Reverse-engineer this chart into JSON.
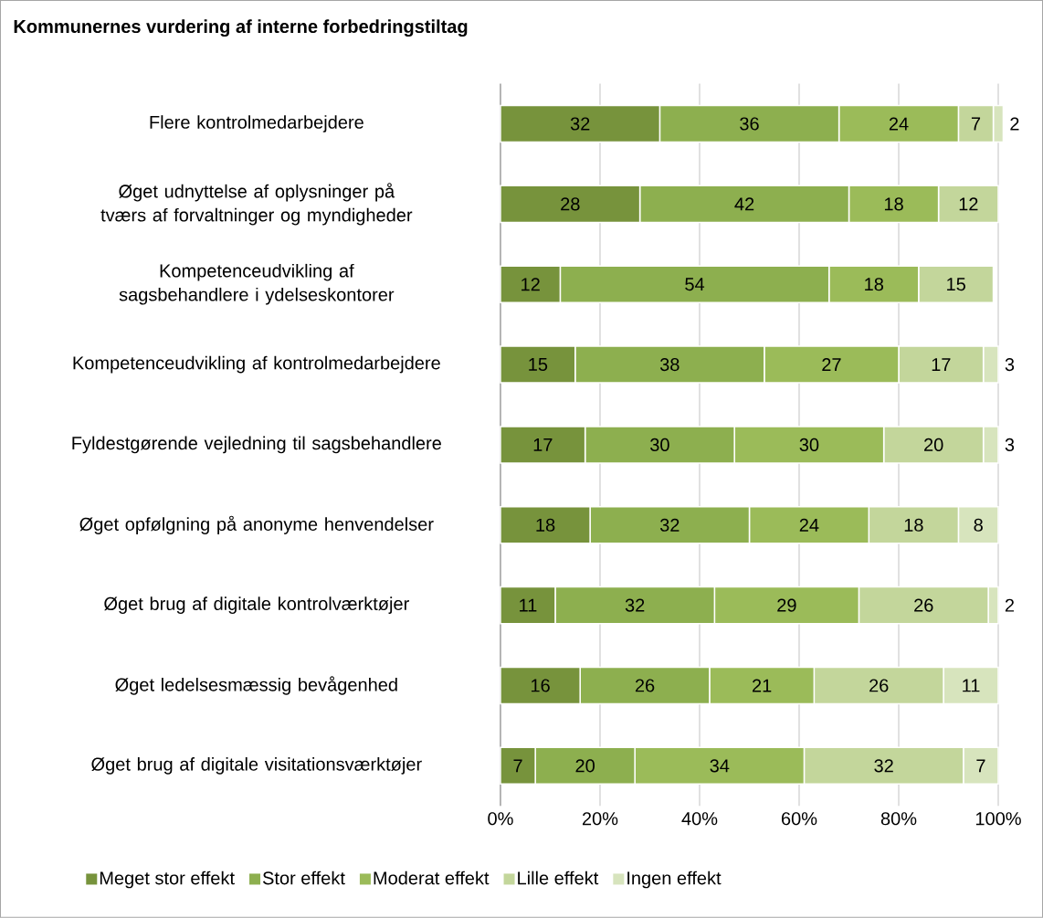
{
  "chart_data": {
    "type": "bar",
    "orientation": "horizontal",
    "stacked": true,
    "title": "Kommunernes vurdering af interne forbedringstiltag",
    "categories": [
      "Flere kontrolmedarbejdere",
      "Øget udnyttelse af oplysninger på tværs af forvaltninger og myndigheder",
      "Kompetenceudvikling af sagsbehandlere i ydelseskontorer",
      "Kompetenceudvikling af kontrolmedarbejdere",
      "Fyldestgørende vejledning til sagsbehandlere",
      "Øget opfølgning på anonyme henvendelser",
      "Øget brug af digitale kontrolværktøjer",
      "Øget ledelsesmæssig bevågenhed",
      "Øget brug af digitale visitationsværktøjer"
    ],
    "series": [
      {
        "name": "Meget stor effekt",
        "color": "#77933c",
        "values": [
          32,
          28,
          12,
          15,
          17,
          18,
          11,
          16,
          7
        ]
      },
      {
        "name": "Stor effekt",
        "color": "#8daf4f",
        "values": [
          36,
          42,
          54,
          38,
          30,
          32,
          32,
          26,
          20
        ]
      },
      {
        "name": "Moderat effekt",
        "color": "#9bbb59",
        "values": [
          24,
          18,
          18,
          27,
          30,
          24,
          29,
          21,
          34
        ]
      },
      {
        "name": "Lille effekt",
        "color": "#c3d69b",
        "values": [
          7,
          12,
          15,
          17,
          20,
          18,
          26,
          26,
          32
        ]
      },
      {
        "name": "Ingen effekt",
        "color": "#d7e4bd",
        "values": [
          2,
          null,
          null,
          3,
          3,
          8,
          2,
          11,
          7
        ]
      }
    ],
    "xlim": [
      0,
      101
    ],
    "xticks": [
      {
        "value": 0,
        "label": "0%"
      },
      {
        "value": 20,
        "label": "20%"
      },
      {
        "value": 40,
        "label": "40%"
      },
      {
        "value": 60,
        "label": "60%"
      },
      {
        "value": 80,
        "label": "80%"
      },
      {
        "value": 100,
        "label": "100%"
      }
    ],
    "grid": "x",
    "legend": "bottom",
    "data_labels": true
  }
}
